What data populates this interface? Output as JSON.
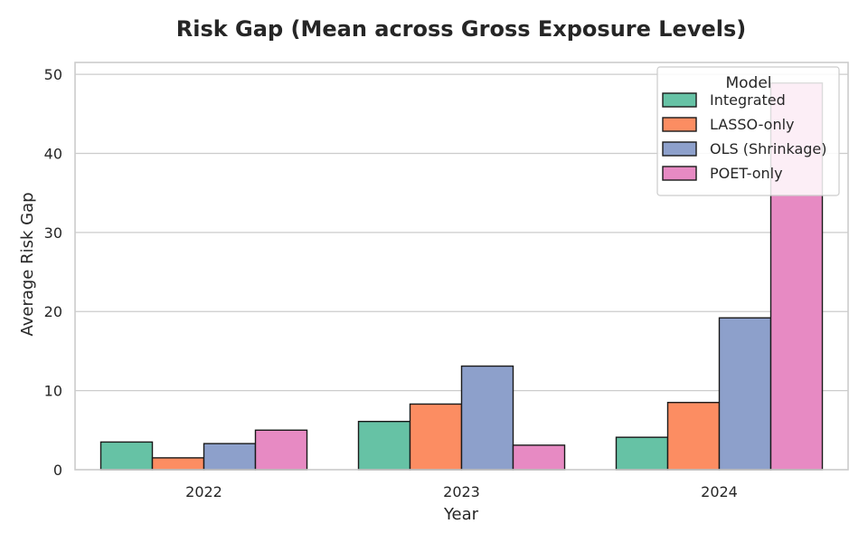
{
  "chart_data": {
    "type": "bar",
    "title": "Risk Gap (Mean across Gross Exposure Levels)",
    "xlabel": "Year",
    "ylabel": "Average Risk Gap",
    "categories": [
      "2022",
      "2023",
      "2024"
    ],
    "ylim": [
      0,
      51.5
    ],
    "yticks": [
      0,
      10,
      20,
      30,
      40,
      50
    ],
    "grid": true,
    "legend": {
      "title": "Model",
      "placement": "top-right"
    },
    "series": [
      {
        "name": "Integrated",
        "color": "#66c2a5",
        "values": [
          3.5,
          6.1,
          4.1
        ]
      },
      {
        "name": "LASSO-only",
        "color": "#fc8d62",
        "values": [
          1.5,
          8.3,
          8.5
        ]
      },
      {
        "name": "OLS (Shrinkage)",
        "color": "#8da0cb",
        "values": [
          3.3,
          13.1,
          19.2
        ]
      },
      {
        "name": "POET-only",
        "color": "#e78ac3",
        "values": [
          5.0,
          3.1,
          48.9
        ]
      }
    ]
  }
}
